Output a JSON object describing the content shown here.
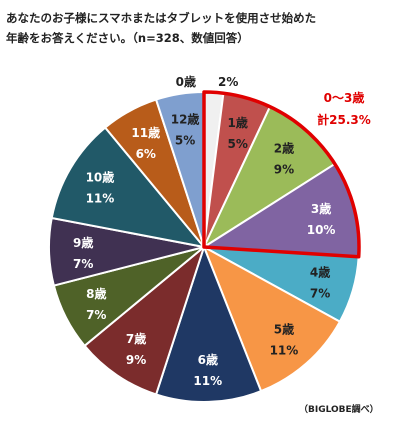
{
  "title": "あなたのお子様にスマホまたはタブレットを使用させ始めた\n年齢をお答えください。（n=328、数値回答）",
  "source": "（BIGLOBE調べ）",
  "chart_data": {
    "type": "pie",
    "categories": [
      "0歳",
      "1歳",
      "2歳",
      "3歳",
      "4歳",
      "5歳",
      "6歳",
      "7歳",
      "8歳",
      "9歳",
      "10歳",
      "11歳",
      "12歳"
    ],
    "values": [
      2,
      5,
      9,
      10,
      7,
      11,
      11,
      9,
      7,
      7,
      11,
      6,
      5
    ],
    "value_labels": [
      "2%",
      "5%",
      "9%",
      "10%",
      "7%",
      "11%",
      "11%",
      "9%",
      "7%",
      "7%",
      "11%",
      "6%",
      "5%"
    ],
    "colors": [
      "#f0f0f0",
      "#c0504d",
      "#9bbb59",
      "#8064a2",
      "#4bacc6",
      "#f79646",
      "#1f3864",
      "#7b2c2c",
      "#4f6228",
      "#403152",
      "#215968",
      "#b85c1a",
      "#7f9fcf"
    ],
    "highlight": {
      "categories": [
        "0歳",
        "1歳",
        "2歳",
        "3歳"
      ],
      "label_line1": "0～3歳",
      "label_line2": "計25.3%",
      "color": "#e00000"
    }
  }
}
